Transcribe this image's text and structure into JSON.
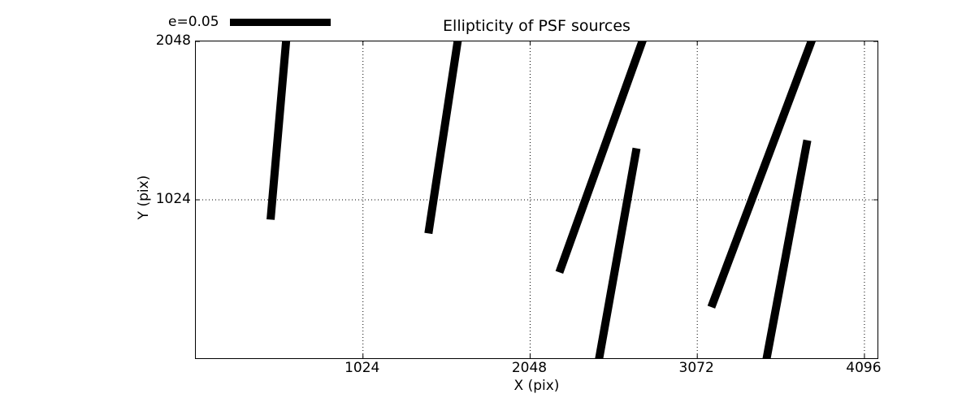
{
  "chart_data": {
    "type": "line",
    "variant": "psf-ellipticity-whisker-plot",
    "title": "Ellipticity of PSF sources",
    "xlabel": "X (pix)",
    "ylabel": "Y (pix)",
    "xlim": [
      0,
      4176
    ],
    "ylim": [
      0,
      2048
    ],
    "xticks": [
      1024,
      2048,
      3072,
      4096
    ],
    "xtick_labels": [
      "1024",
      "2048",
      "3072",
      "4096"
    ],
    "yticks": [
      1024,
      2048
    ],
    "ytick_labels": [
      "1024",
      "2048"
    ],
    "grid": "dotted",
    "legend_position": "top-left-above-axes",
    "legend": {
      "label": "e=0.05"
    },
    "colors": {
      "stroke": "#000000",
      "background": "#ffffff"
    },
    "segments": [
      {
        "x1": 553,
        "y1": 2048,
        "x2": 458,
        "y2": 896
      },
      {
        "x1": 1604,
        "y1": 2048,
        "x2": 1425,
        "y2": 807
      },
      {
        "x1": 2735,
        "y1": 2048,
        "x2": 2227,
        "y2": 555
      },
      {
        "x1": 2700,
        "y1": 1357,
        "x2": 2471,
        "y2": 0
      },
      {
        "x1": 3771,
        "y1": 2048,
        "x2": 3158,
        "y2": 330
      },
      {
        "x1": 3746,
        "y1": 1409,
        "x2": 3497,
        "y2": 0
      }
    ]
  }
}
